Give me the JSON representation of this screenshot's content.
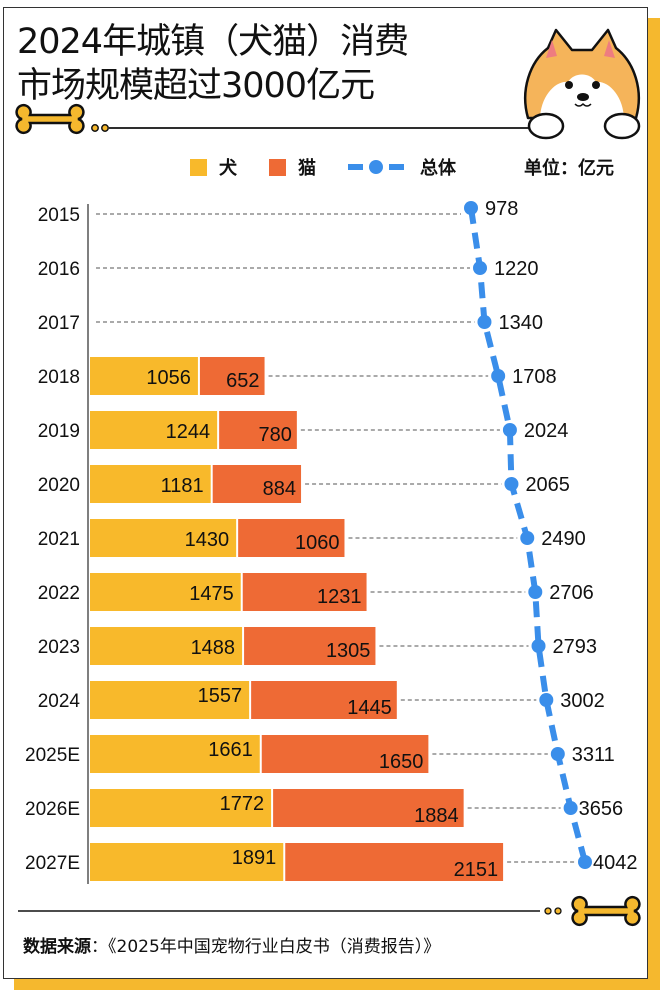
{
  "title_line1": "2024年城镇（犬猫）消费",
  "title_line2": "市场规模超过3000亿元",
  "legend": {
    "dog_label": "犬",
    "cat_label": "猫",
    "total_label": "总体"
  },
  "unit_label": "单位：亿元",
  "source_label": "数据来源",
  "source_text": "：《2025年中国宠物行业白皮书（消费报告）》",
  "colors": {
    "dog": "#F8B92B",
    "cat": "#EE6A35",
    "total": "#3A8EEA",
    "accent_shadow": "#F5B82E"
  },
  "chart_data": {
    "type": "bar",
    "orientation": "horizontal-stacked-with-line",
    "title": "2024年城镇（犬猫）消费市场规模超过3000亿元",
    "xlabel": "",
    "ylabel": "",
    "unit": "亿元",
    "categories": [
      "2015",
      "2016",
      "2017",
      "2018",
      "2019",
      "2020",
      "2021",
      "2022",
      "2023",
      "2024",
      "2025E",
      "2026E",
      "2027E"
    ],
    "series": [
      {
        "name": "犬",
        "type": "bar",
        "values": [
          null,
          null,
          null,
          1056,
          1244,
          1181,
          1430,
          1475,
          1488,
          1557,
          1661,
          1772,
          1891
        ]
      },
      {
        "name": "猫",
        "type": "bar",
        "values": [
          null,
          null,
          null,
          652,
          780,
          884,
          1060,
          1231,
          1305,
          1445,
          1650,
          1884,
          2151
        ]
      },
      {
        "name": "总体",
        "type": "line",
        "values": [
          978,
          1220,
          1340,
          1708,
          2024,
          2065,
          2490,
          2706,
          2793,
          3002,
          3311,
          3656,
          4042
        ]
      }
    ],
    "legend_position": "top",
    "grid": false
  }
}
